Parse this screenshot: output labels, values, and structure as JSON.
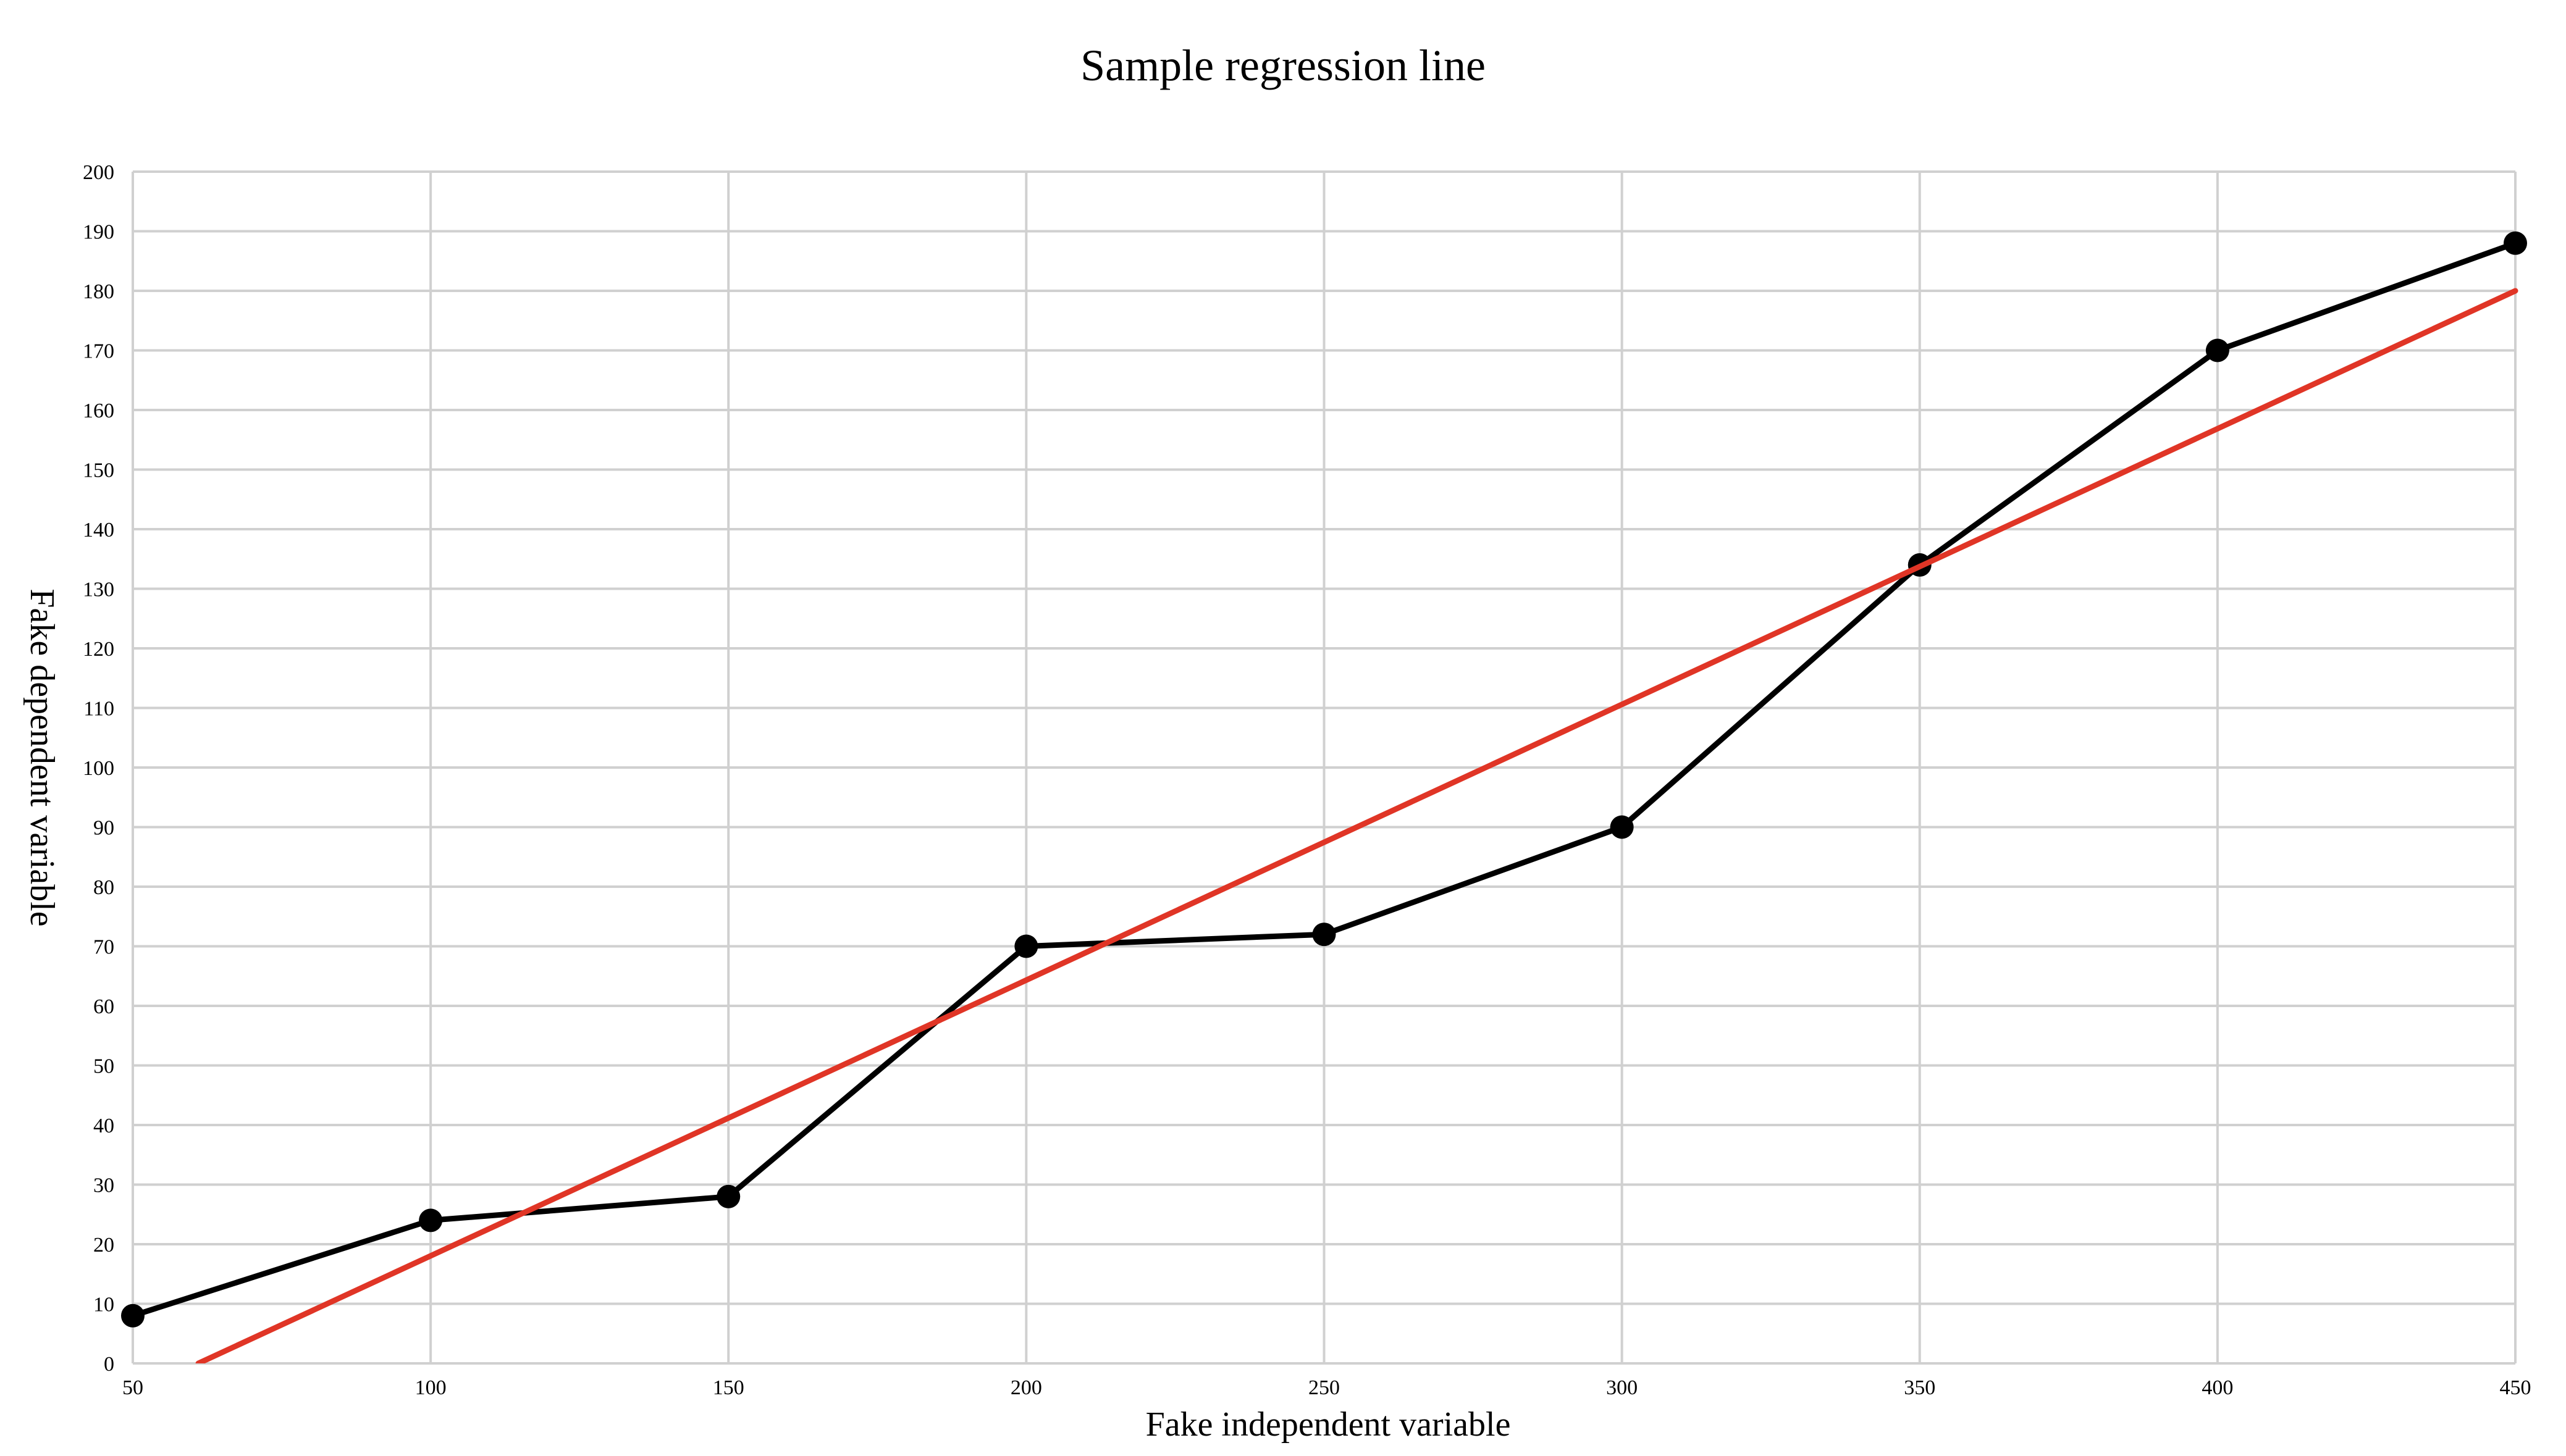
{
  "chart_data": {
    "type": "line",
    "title": "Sample regression line",
    "xlabel": "Fake independent variable",
    "ylabel": "Fake dependent variable",
    "xlim": [
      50,
      450
    ],
    "ylim": [
      0,
      200
    ],
    "x_ticks": [
      50,
      100,
      150,
      200,
      250,
      300,
      350,
      400,
      450
    ],
    "y_ticks": [
      0,
      10,
      20,
      30,
      40,
      50,
      60,
      70,
      80,
      90,
      100,
      110,
      120,
      130,
      140,
      150,
      160,
      170,
      180,
      190,
      200
    ],
    "grid": true,
    "legend": "none",
    "series": [
      {
        "x": [
          50,
          100,
          150,
          200,
          250,
          300,
          350,
          400,
          450
        ],
        "y": [
          8,
          24,
          28,
          70,
          72,
          90,
          134,
          170,
          188
        ],
        "color": "#000000",
        "markers": true
      },
      {
        "x": [
          61,
          450
        ],
        "y": [
          0,
          180
        ],
        "color": "#e03526",
        "markers": false
      }
    ]
  }
}
